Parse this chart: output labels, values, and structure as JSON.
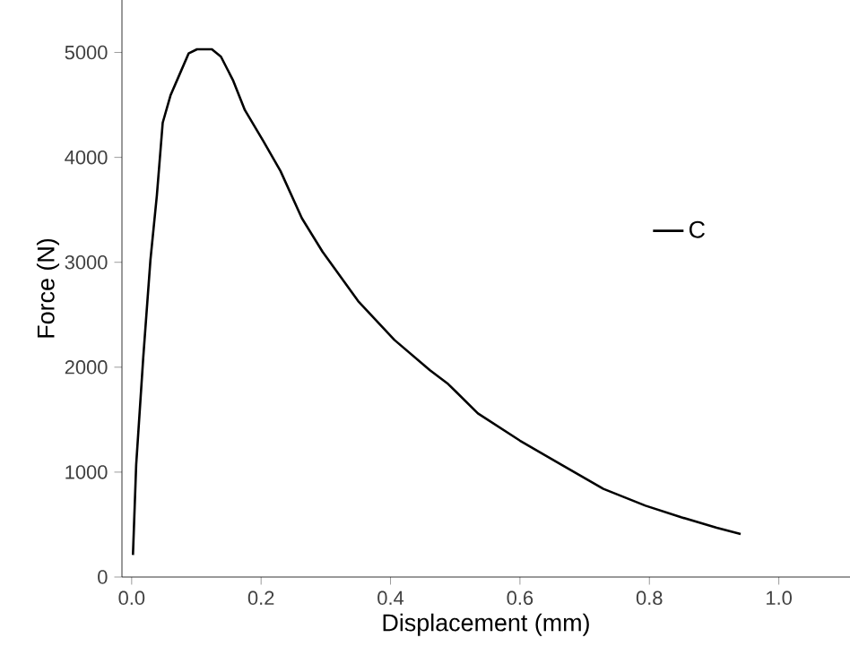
{
  "chart_data": {
    "type": "line",
    "xlabel": "Displacement (mm)",
    "ylabel": "Force (N)",
    "xlim": [
      -0.015,
      1.11
    ],
    "ylim": [
      0,
      5500
    ],
    "xticks": [
      {
        "value": 0,
        "label": "0.0"
      },
      0.2,
      0.4,
      0.6,
      0.8,
      {
        "value": 1,
        "label": "1.0"
      }
    ],
    "yticks": [
      0,
      1000,
      2000,
      3000,
      4000,
      5000
    ],
    "legend": "right",
    "grid": false,
    "marker": "none",
    "line_style": "solid",
    "series": [
      {
        "name": "C",
        "color": "#000000",
        "x": [
          0.002,
          0.007,
          0.018,
          0.029,
          0.039,
          0.048,
          0.06,
          0.074,
          0.088,
          0.101,
          0.124,
          0.138,
          0.157,
          0.175,
          0.203,
          0.23,
          0.263,
          0.295,
          0.35,
          0.406,
          0.461,
          0.489,
          0.535,
          0.6,
          0.664,
          0.729,
          0.794,
          0.849,
          0.904,
          0.941
        ],
        "values": [
          210,
          1070,
          2100,
          3020,
          3640,
          4330,
          4590,
          4790,
          4990,
          5030,
          5030,
          4960,
          4730,
          4450,
          4160,
          3870,
          3420,
          3100,
          2630,
          2260,
          1970,
          1840,
          1560,
          1300,
          1070,
          840,
          680,
          570,
          470,
          410
        ]
      }
    ]
  }
}
